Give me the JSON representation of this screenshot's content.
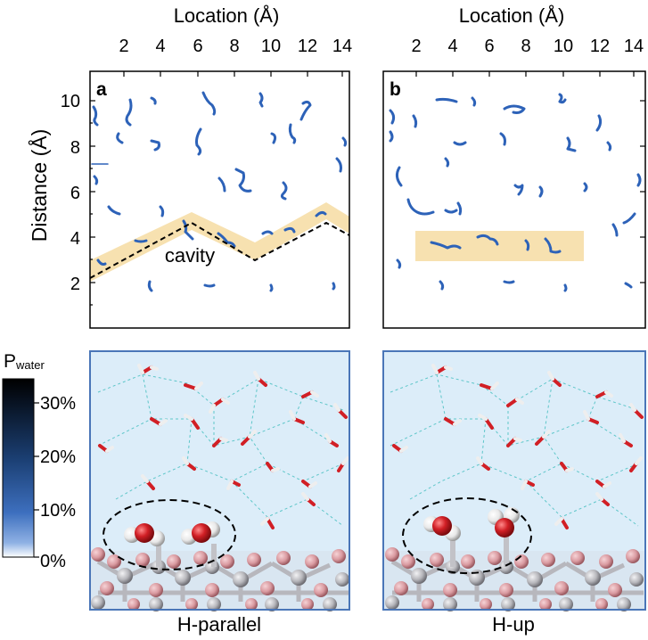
{
  "figure": {
    "panel_a": {
      "letter": "a",
      "xlabel": "Location (Å)",
      "ylabel": "Distance (Å)",
      "xticks": [
        "2",
        "4",
        "6",
        "8",
        "10",
        "12",
        "14"
      ],
      "yticks": [
        "2",
        "4",
        "6",
        "8",
        "10"
      ],
      "annotation": "cavity"
    },
    "panel_b": {
      "letter": "b",
      "xlabel": "Location (Å)",
      "xticks": [
        "2",
        "4",
        "6",
        "8",
        "10",
        "12",
        "14"
      ]
    },
    "colorbar": {
      "title_main": "P",
      "title_sub": "water",
      "ticks": [
        "30%",
        "20%",
        "10%",
        "0%"
      ]
    },
    "snapshots": {
      "left_caption": "H-parallel",
      "right_caption": "H-up"
    },
    "colors": {
      "trajectory": "#2d62b8",
      "highlight": "#f7e1b0",
      "snapshot_bg": "#dcedf9",
      "snapshot_border": "#4a76b8",
      "oxygen": "#d11f25",
      "hydrogen": "#f1f1f1",
      "surface_pink": "#d99aa0",
      "surface_gray": "#a8a8ad"
    }
  }
}
